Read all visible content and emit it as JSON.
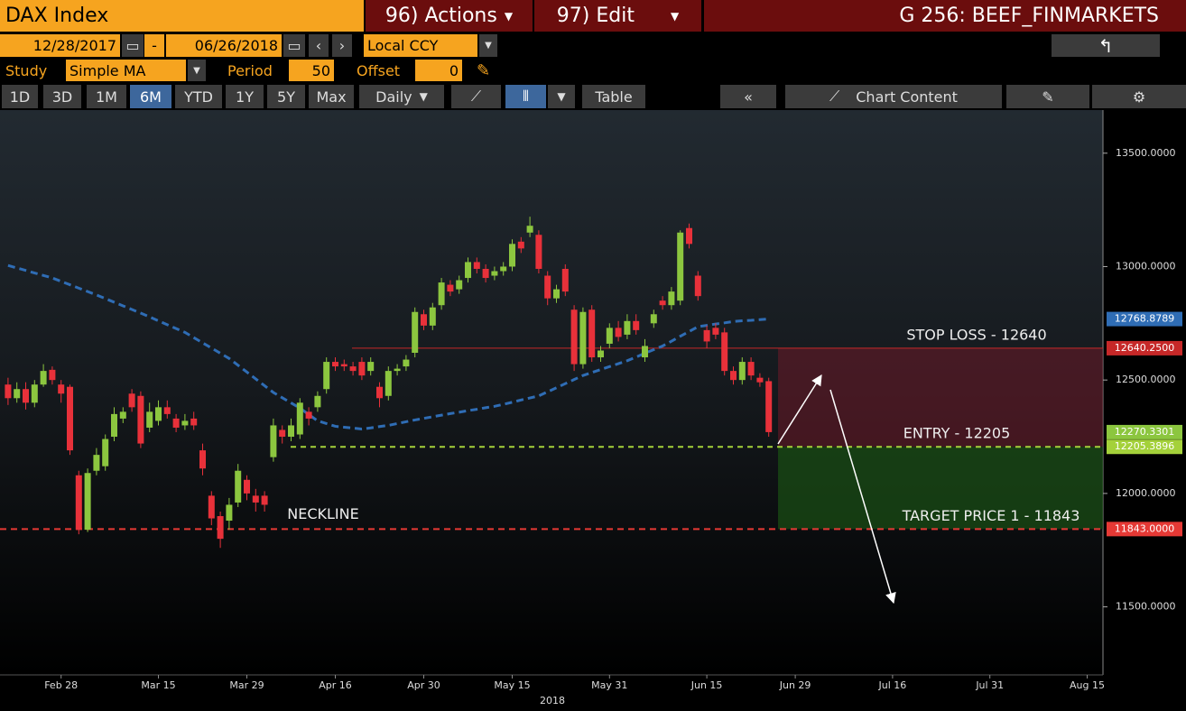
{
  "toolbar": {
    "security": "DAX Index",
    "actions": "96) Actions",
    "edit": "97) Edit",
    "page_title": "G 256: BEEF_FINMARKETS",
    "start_date": "12/28/2017",
    "date_separator": "-",
    "end_date": "06/26/2018",
    "currency": "Local CCY",
    "study_label": "Study",
    "study": "Simple MA",
    "period_label": "Period",
    "period": 50,
    "offset_label": "Offset",
    "offset": 0,
    "ranges": [
      "1D",
      "3D",
      "1M",
      "6M",
      "YTD",
      "1Y",
      "5Y",
      "Max"
    ],
    "selected_range": "6M",
    "frequency": "Daily",
    "table": "Table",
    "chart_content": "Chart Content"
  },
  "chart_data": {
    "type": "candlestick",
    "xlabel": "2018",
    "categories": [
      null,
      null,
      null,
      null,
      null,
      null,
      "Feb 28",
      null,
      null,
      null,
      null,
      null,
      null,
      null,
      null,
      null,
      null,
      "Mar 15",
      null,
      null,
      null,
      null,
      null,
      null,
      null,
      null,
      null,
      "Mar 29",
      null,
      null,
      null,
      null,
      null,
      null,
      null,
      null,
      null,
      "Apr 16",
      null,
      null,
      null,
      null,
      null,
      null,
      null,
      null,
      null,
      "Apr 30",
      null,
      null,
      null,
      null,
      null,
      null,
      null,
      null,
      null,
      "May 15",
      null,
      null,
      null,
      null,
      null,
      null,
      null,
      null,
      null,
      null,
      "May 31",
      null,
      null,
      null,
      null,
      null,
      null,
      null,
      null,
      null,
      null,
      "Jun 15",
      null,
      null,
      null,
      null,
      null,
      null,
      null,
      null,
      null,
      "Jun 29",
      null,
      null,
      null,
      null,
      null,
      null,
      null,
      null,
      null,
      null,
      "Jul 16",
      null,
      null,
      null,
      null,
      null,
      null,
      null,
      null,
      null,
      null,
      "Jul 31",
      null,
      null,
      null,
      null,
      null,
      null,
      null,
      null,
      null,
      null,
      "Aug 15"
    ],
    "open": [
      12480,
      12420,
      12460,
      12400,
      12480,
      12545,
      12480,
      12470,
      12080,
      11840,
      12100,
      12120,
      12250,
      12330,
      12440,
      12430,
      12290,
      12320,
      12380,
      12330,
      12300,
      12330,
      12190,
      11990,
      11900,
      11880,
      11960,
      12060,
      11990,
      11990,
      12160,
      12280,
      12250,
      12260,
      12360,
      12380,
      12460,
      12580,
      12570,
      12560,
      12580,
      12540,
      12470,
      12430,
      12540,
      12560,
      12620,
      12790,
      12740,
      12830,
      12920,
      12900,
      12950,
      13020,
      12990,
      12960,
      12980,
      13000,
      13110,
      13150,
      13140,
      12960,
      12860,
      12990,
      12810,
      12570,
      12810,
      12600,
      12660,
      12730,
      12700,
      12760,
      12600,
      12750,
      12850,
      12830,
      12850,
      13170,
      12960,
      12720,
      12730,
      12710,
      12540,
      12500,
      12580,
      12510,
      12495,
      null,
      null,
      null,
      null,
      null,
      null,
      null,
      null,
      null,
      null,
      null,
      null,
      null,
      null,
      null,
      null,
      null,
      null,
      null,
      null,
      null,
      null,
      null,
      null,
      null,
      null,
      null,
      null,
      null,
      null,
      null,
      null,
      null,
      null,
      null,
      null
    ],
    "high": [
      12510,
      12490,
      12490,
      12500,
      12570,
      12560,
      12500,
      12480,
      12100,
      12110,
      12200,
      12260,
      12380,
      12380,
      12460,
      12450,
      12400,
      12410,
      12410,
      12350,
      12350,
      12360,
      12220,
      12010,
      11920,
      11980,
      12130,
      12080,
      12020,
      12010,
      12330,
      12300,
      12330,
      12420,
      12380,
      12450,
      12600,
      12600,
      12590,
      12580,
      12600,
      12600,
      12490,
      12560,
      12570,
      12610,
      12820,
      12810,
      12840,
      12950,
      12940,
      12960,
      13040,
      13040,
      13010,
      13000,
      13020,
      13120,
      13130,
      13220,
      13160,
      12980,
      12920,
      13010,
      12830,
      12820,
      12830,
      12650,
      12750,
      12760,
      12790,
      12790,
      12680,
      12810,
      12870,
      12910,
      13160,
      13190,
      12980,
      12740,
      12750,
      12730,
      12560,
      12600,
      12600,
      12530,
      12510,
      null,
      null,
      null,
      null,
      null,
      null,
      null,
      null,
      null,
      null,
      null,
      null,
      null,
      null,
      null,
      null,
      null,
      null,
      null,
      null,
      null,
      null,
      null,
      null,
      null,
      null,
      null,
      null,
      null,
      null,
      null,
      null,
      null,
      null,
      null,
      null
    ],
    "low": [
      12390,
      12400,
      12370,
      12380,
      12470,
      12480,
      12400,
      12170,
      11820,
      11830,
      12080,
      12100,
      12230,
      12310,
      12360,
      12200,
      12270,
      12300,
      12330,
      12270,
      12280,
      12280,
      12080,
      11860,
      11760,
      11840,
      11940,
      11970,
      11920,
      11920,
      12140,
      12220,
      12230,
      12240,
      12300,
      12360,
      12440,
      12540,
      12540,
      12520,
      12500,
      12520,
      12380,
      12410,
      12520,
      12540,
      12600,
      12720,
      12720,
      12810,
      12870,
      12880,
      12930,
      12970,
      12930,
      12940,
      12960,
      12980,
      13060,
      13130,
      12970,
      12830,
      12840,
      12870,
      12540,
      12550,
      12580,
      12580,
      12640,
      12670,
      12680,
      12700,
      12580,
      12730,
      12810,
      12810,
      12830,
      13080,
      12850,
      12640,
      12680,
      12520,
      12480,
      12480,
      12500,
      12470,
      12250,
      null,
      null,
      null,
      null,
      null,
      null,
      null,
      null,
      null,
      null,
      null,
      null,
      null,
      null,
      null,
      null,
      null,
      null,
      null,
      null,
      null,
      null,
      null,
      null,
      null,
      null,
      null,
      null,
      null,
      null,
      null,
      null,
      null,
      null,
      null,
      null
    ],
    "close": [
      12420,
      12460,
      12400,
      12480,
      12540,
      12500,
      12440,
      12190,
      11840,
      12090,
      12170,
      12240,
      12350,
      12360,
      12380,
      12220,
      12360,
      12380,
      12350,
      12290,
      12320,
      12300,
      12110,
      11890,
      11800,
      11950,
      12100,
      12000,
      11960,
      11950,
      12300,
      12250,
      12300,
      12400,
      12330,
      12430,
      12580,
      12560,
      12560,
      12540,
      12520,
      12580,
      12420,
      12540,
      12550,
      12590,
      12800,
      12740,
      12820,
      12930,
      12890,
      12940,
      13020,
      12990,
      12950,
      12980,
      13000,
      13100,
      13080,
      13180,
      12990,
      12860,
      12900,
      12890,
      12570,
      12800,
      12600,
      12630,
      12730,
      12690,
      12760,
      12720,
      12650,
      12790,
      12830,
      12890,
      13150,
      13100,
      12870,
      12670,
      12700,
      12540,
      12500,
      12580,
      12520,
      12490,
      12270.3301,
      null,
      null,
      null,
      null,
      null,
      null,
      null,
      null,
      null,
      null,
      null,
      null,
      null,
      null,
      null,
      null,
      null,
      null,
      null,
      null,
      null,
      null,
      null,
      null,
      null,
      null,
      null,
      null,
      null,
      null,
      null,
      null,
      null,
      null,
      null,
      null
    ],
    "up_color": "#8cc63f",
    "down_color": "#e8313a",
    "moving_average": {
      "color": "#2f6db5",
      "values": [
        13005,
        12994,
        12983,
        12972,
        12961,
        12950,
        12935,
        12920,
        12905,
        12890,
        12875,
        12859,
        12843,
        12827,
        12811,
        12795,
        12778,
        12761,
        12744,
        12727,
        12710,
        12687,
        12664,
        12641,
        12618,
        12595,
        12565,
        12535,
        12505,
        12475,
        12445,
        12422,
        12399,
        12376,
        12348,
        12320,
        12308,
        12296,
        12292,
        12288,
        12284,
        12289,
        12295,
        12300,
        12308,
        12316,
        12324,
        12331,
        12338,
        12345,
        12352,
        12358,
        12365,
        12371,
        12378,
        12384,
        12393,
        12402,
        12412,
        12421,
        12430,
        12448,
        12466,
        12484,
        12502,
        12520,
        12533,
        12546,
        12559,
        12572,
        12585,
        12601,
        12618,
        12634,
        12650,
        12671,
        12693,
        12714,
        12735,
        12741,
        12747,
        12752,
        12758,
        12761,
        12763,
        12766,
        12768.8789,
        null,
        null,
        null,
        null,
        null,
        null,
        null,
        null,
        null,
        null,
        null,
        null,
        null,
        null,
        null,
        null,
        null,
        null,
        null,
        null,
        null,
        null,
        null,
        null,
        null,
        null,
        null,
        null,
        null,
        null,
        null,
        null,
        null,
        null,
        null,
        null
      ]
    },
    "levels": [
      {
        "text": "STOP LOSS - 12640",
        "value": 12640.25,
        "label": "12640.2500",
        "color": "#c62828"
      },
      {
        "text": "ENTRY - 12205",
        "value": 12205.3896,
        "color": "#a4d13a"
      },
      {
        "text": "TARGET PRICE 1 - 11843",
        "value": 11843,
        "label": "11843.0000",
        "color": "#e53935"
      }
    ],
    "neckline_label": "NECKLINE",
    "ylim": [
      11200,
      13690
    ],
    "yticks": [
      {
        "value": 11500,
        "label": "11500.0000"
      },
      {
        "value": 12000,
        "label": "12000.0000"
      },
      {
        "value": 12500,
        "label": "12500.0000"
      },
      {
        "value": 13000,
        "label": "13000.0000"
      },
      {
        "value": 13500,
        "label": "13500.0000"
      }
    ]
  }
}
